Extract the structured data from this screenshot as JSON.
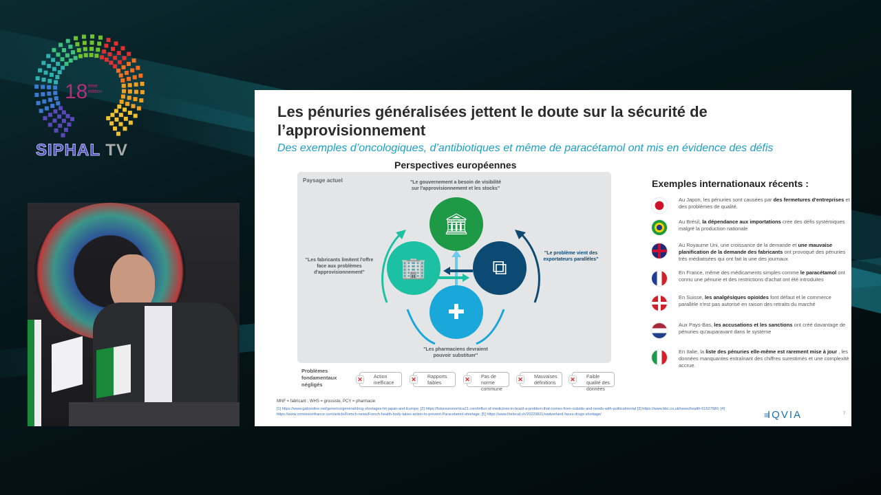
{
  "broadcast": {
    "logo_edition": "18ème édition",
    "logo_name": "SIPHAL",
    "logo_suffix": "TV"
  },
  "slide": {
    "title": "Les pénuries généralisées jettent le doute sur la sécurité de l’approvisionnement",
    "subtitle": "Des exemples d’oncologiques, d’antibiotiques et même de paracétamol ont mis en évidence des défis",
    "perspectives_heading": "Perspectives européennes",
    "panel_label": "Paysage actuel",
    "quotes": {
      "government": "\"Le gouvernement a besoin de visibilité sur l'approvisionnement et les stocks\"",
      "manufacturers": "\"Les fabricants limitent l'offre face aux problèmes d'approvisionnement\"",
      "exporters": "\"Le problème vient des exportateurs parallèles\"",
      "pharmacists": "\"Les pharmaciens devraient pouvoir substituer\""
    },
    "circles": [
      {
        "name": "government",
        "icon": "bank-coin-icon",
        "color": "#1e9a46"
      },
      {
        "name": "manufacturers",
        "icon": "building-medicine-icon",
        "color": "#1cc0a3"
      },
      {
        "name": "exporters",
        "icon": "signpost-icon",
        "color": "#0c4a73"
      },
      {
        "name": "pharmacists",
        "icon": "pharmacy-bottle-icon",
        "color": "#1aa7d9"
      }
    ],
    "problems_label": "Problèmes fondamentaux négligés",
    "problems": [
      "Action inefficace",
      "Rapports faibles",
      "Pas de norme commune",
      "Mauvaises définitions",
      "Faible qualité des données"
    ],
    "abbreviations": "MNF = fabricant ; WHS = grossiste, PCY = pharmacie",
    "references": "[1] https://www.gabionline.net/generics/general/drug-shortages-hit-japan-and-Europe; [2] https://futureuronomica21.com/influx-of-medicines-in-brazil-a-problem-that-comes-from-outside-and-needs-with-politicalmortal [3] https://www.bbc.co.uk/news/health-61527680; [4] https://www.connexionfrance.com/article/French-news/French-health-body-takes-action-to-prevent-Paracetamol-shortage; [5] https://www.thelocal.ch/20220821/switzerland-faces-drugs-shortage/",
    "international_heading": "Exemples internationaux récents :",
    "international": [
      {
        "country": "Japon",
        "flag": "japan-flag-icon",
        "pre": "Au Japon, les pénuries sont causées par ",
        "bold": "des fermetures d'entreprises",
        "post": " et des problèmes de qualité."
      },
      {
        "country": "Brésil",
        "flag": "brazil-flag-icon",
        "pre": "Au Brésil, ",
        "bold": "la dépendance aux importations",
        "post": " crée des défis systémiques malgré la production nationale"
      },
      {
        "country": "Royaume Uni",
        "flag": "uk-flag-icon",
        "pre": "Au Royaume Uni, une croissance de la demande et ",
        "bold": "une mauvaise planification de la demande des fabricants",
        "post": " ont provoqué des pénuries très médiatisées qui ont fait la une des journaux"
      },
      {
        "country": "France",
        "flag": "france-flag-icon",
        "pre": "En France, même des médicaments simples comme ",
        "bold": "le paracétamol",
        "post": " ont connu une pénurie et des restrictions d'achat ont été introduites"
      },
      {
        "country": "Suisse",
        "flag": "switzerland-flag-icon",
        "pre": "En Suisse, ",
        "bold": "les analgésiques opioïdes",
        "post": " font défaut et le commerce parallèle n'est pas autorisé en raison des retraits du marché"
      },
      {
        "country": "Pays-Bas",
        "flag": "netherlands-flag-icon",
        "pre": "Aux Pays-Bas, ",
        "bold": "les accusations et les sanctions",
        "post": " ont créé davantage de pénuries qu'auparavant dans le système"
      },
      {
        "country": "Italie",
        "flag": "italy-flag-icon",
        "pre": "En Italie, la ",
        "bold": "liste des pénuries elle-même est rarement mise à jour",
        "post": " , les données manquantes entraînant des chiffres surestimés et une complexité accrue."
      }
    ],
    "brand": "IQVIA",
    "page_number": "7"
  }
}
